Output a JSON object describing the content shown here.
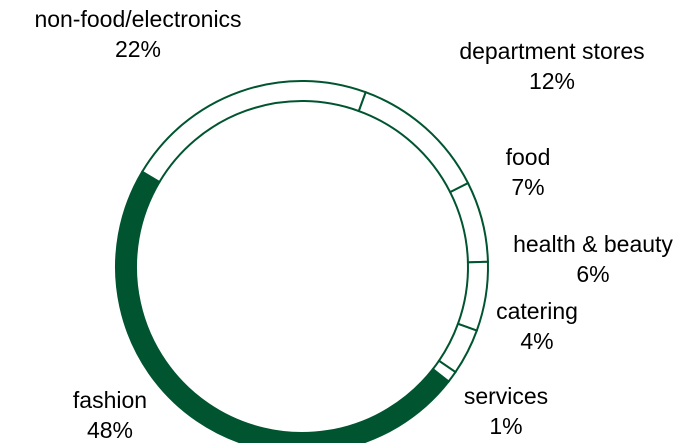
{
  "chart_data": {
    "type": "pie",
    "style": "donut",
    "start_angle_deg": 20,
    "direction": "clockwise",
    "slices": [
      {
        "label": "department stores",
        "value": 12,
        "percent_label": "12%",
        "filled": false
      },
      {
        "label": "food",
        "value": 7,
        "percent_label": "7%",
        "filled": false
      },
      {
        "label": "health & beauty",
        "value": 6,
        "percent_label": "6%",
        "filled": false
      },
      {
        "label": "catering",
        "value": 4,
        "percent_label": "4%",
        "filled": false
      },
      {
        "label": "services",
        "value": 1,
        "percent_label": "1%",
        "filled": false
      },
      {
        "label": "fashion",
        "value": 48,
        "percent_label": "48%",
        "filled": true
      },
      {
        "label": "non-food/electronics",
        "value": 22,
        "percent_label": "22%",
        "filled": false
      }
    ]
  },
  "colors": {
    "highlight_fill": "#005530",
    "outline": "#005530",
    "other_fill": "#ffffff"
  }
}
